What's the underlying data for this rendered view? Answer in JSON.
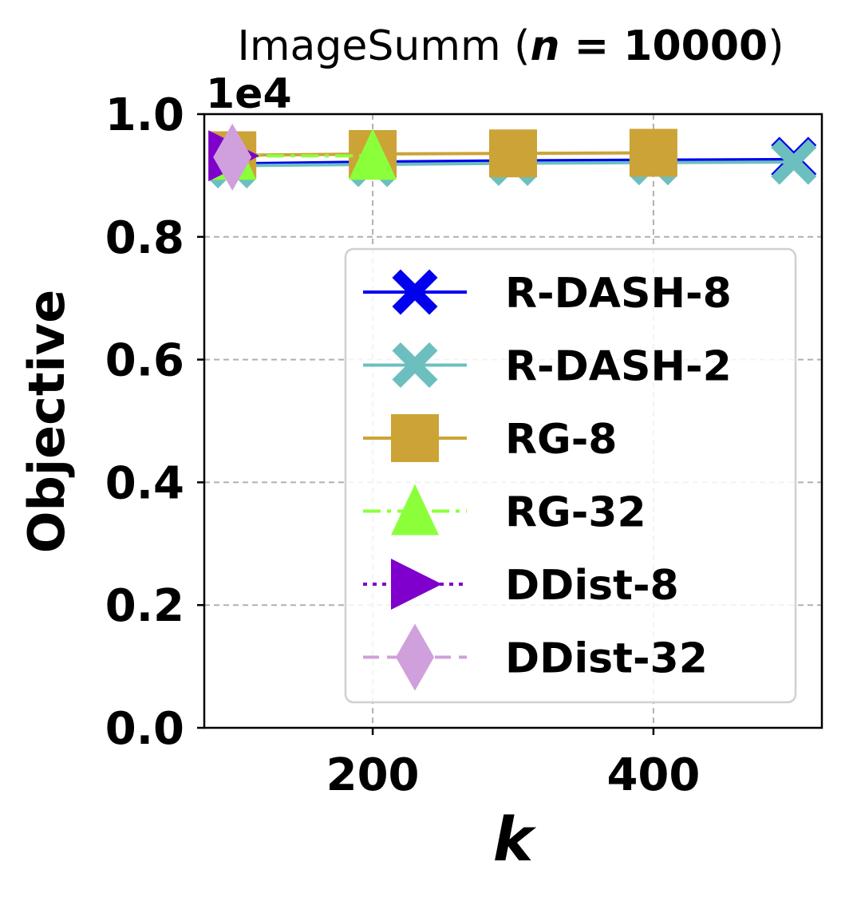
{
  "chart_data": {
    "type": "line",
    "title_main": "ImageSumm (",
    "title_n": "n",
    "title_eq": " = 10000",
    "title_close": ")",
    "xlabel": "k",
    "ylabel": "Objective",
    "y_offset_label": "1e4",
    "xlim": [
      80,
      520
    ],
    "ylim": [
      0,
      1.0
    ],
    "xticks": [
      200,
      400
    ],
    "yticks": [
      0.0,
      0.2,
      0.4,
      0.6,
      0.8,
      1.0
    ],
    "ytick_labels": [
      "0.0",
      "0.2",
      "0.4",
      "0.6",
      "0.8",
      "1.0"
    ],
    "grid": true,
    "legend_position": "lower-right",
    "series": [
      {
        "name": "R-DASH-8",
        "color": "#0000ee",
        "marker": "X",
        "linestyle": "solid",
        "x": [
          100,
          200,
          300,
          400,
          500
        ],
        "y": [
          0.919,
          0.922,
          0.924,
          0.925,
          0.926
        ]
      },
      {
        "name": "R-DASH-2",
        "color": "#6dbfbf",
        "marker": "X",
        "linestyle": "solid",
        "x": [
          100,
          200,
          300,
          400,
          500
        ],
        "y": [
          0.916,
          0.918,
          0.92,
          0.921,
          0.922
        ]
      },
      {
        "name": "RG-8",
        "color": "#cca336",
        "marker": "square",
        "linestyle": "solid",
        "x": [
          100,
          200,
          300,
          400
        ],
        "y": [
          0.933,
          0.935,
          0.936,
          0.937
        ]
      },
      {
        "name": "RG-32",
        "color": "#8cff3b",
        "marker": "triangle-up",
        "linestyle": "dashdot",
        "x": [
          100,
          200
        ],
        "y": [
          0.932,
          0.932
        ]
      },
      {
        "name": "DDist-8",
        "color": "#7f00cc",
        "marker": "triangle-right",
        "linestyle": "dotted",
        "x": [
          100
        ],
        "y": [
          0.932
        ]
      },
      {
        "name": "DDist-32",
        "color": "#cfa0db",
        "marker": "diamond",
        "linestyle": "dashed",
        "x": [
          100
        ],
        "y": [
          0.93
        ]
      }
    ]
  }
}
